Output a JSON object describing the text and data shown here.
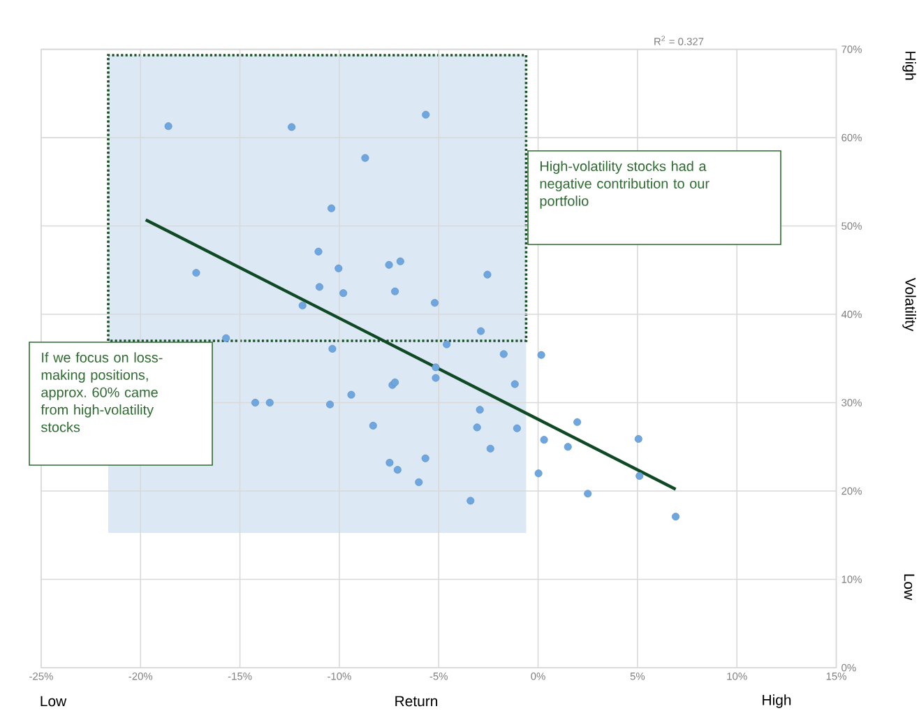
{
  "chart_data": {
    "type": "scatter",
    "xlabel": "Return",
    "ylabel": "Volatility",
    "xlim": [
      -25,
      15
    ],
    "ylim": [
      0,
      70
    ],
    "xticks": [
      {
        "value": -25,
        "label": "-25%"
      },
      {
        "value": -20,
        "label": "-20%"
      },
      {
        "value": -15,
        "label": "-15%"
      },
      {
        "value": -10,
        "label": "-10%"
      },
      {
        "value": -5,
        "label": "-5%"
      },
      {
        "value": 0,
        "label": "0%"
      },
      {
        "value": 5,
        "label": "5%"
      },
      {
        "value": 10,
        "label": "10%"
      },
      {
        "value": 15,
        "label": "15%"
      }
    ],
    "yticks": [
      {
        "value": 0,
        "label": "0%"
      },
      {
        "value": 10,
        "label": "10%"
      },
      {
        "value": 20,
        "label": "20%"
      },
      {
        "value": 30,
        "label": "30%"
      },
      {
        "value": 40,
        "label": "40%"
      },
      {
        "value": 50,
        "label": "50%"
      },
      {
        "value": 60,
        "label": "60%"
      },
      {
        "value": 70,
        "label": "70%"
      }
    ],
    "grid": true,
    "annotations": [
      "R$^{2}$ = 0.327",
      "High-volatility stocks had a negative contribution to our portfolio",
      "If we focus on loss-making positions, approx. 60% came from high-volatility stocks",
      "Low",
      "High",
      "High",
      "Low"
    ],
    "series": [
      {
        "color": "#6ea6e0",
        "x": [
          -18.6,
          -12.4,
          -5.65,
          -8.7,
          -10.4,
          -11.05,
          -10.04,
          -7.5,
          -6.93,
          -17.2,
          -11.0,
          -9.8,
          -7.2,
          -11.85,
          -5.2,
          -15.7,
          -10.35,
          -4.6,
          -2.55,
          -2.88,
          -1.73,
          0.16,
          -14.23,
          -13.5,
          -10.47,
          -9.4,
          -8.3,
          -7.33,
          -7.2,
          -7.47,
          -7.07,
          -5.67,
          -6.0,
          -5.15,
          -5.15,
          -3.4,
          -1.17,
          -2.93,
          -3.07,
          -1.06,
          -2.4,
          0.3,
          1.5,
          1.97,
          5.05,
          5.1,
          0.02,
          2.5,
          6.92
        ],
        "values": [
          61.3,
          61.2,
          62.6,
          57.7,
          52.0,
          47.1,
          45.2,
          45.6,
          46.0,
          44.7,
          43.1,
          42.4,
          42.6,
          41.0,
          41.3,
          37.3,
          36.1,
          36.6,
          44.5,
          38.1,
          35.5,
          35.4,
          30.0,
          30.0,
          29.8,
          30.9,
          27.4,
          32.0,
          32.3,
          23.2,
          22.4,
          23.7,
          21.0,
          32.8,
          34.0,
          18.9,
          32.1,
          29.2,
          27.2,
          27.1,
          24.8,
          25.8,
          25.0,
          27.8,
          25.9,
          21.7,
          22.0,
          19.7,
          17.1
        ]
      },
      {
        "type": "line",
        "color": "#0f4a24",
        "x": [
          -19.74,
          6.92
        ],
        "values": [
          50.7,
          20.2
        ]
      }
    ]
  }
}
